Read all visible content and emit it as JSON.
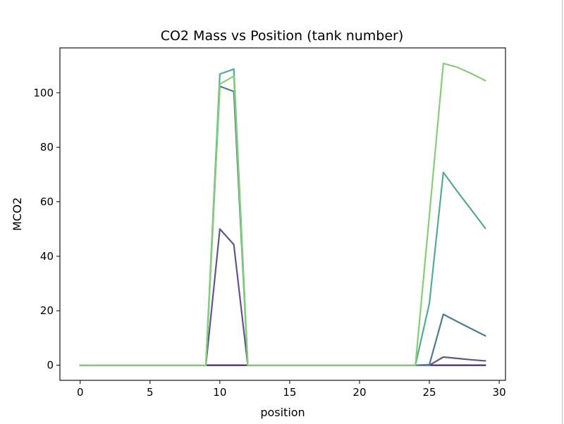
{
  "chart_data": {
    "type": "line",
    "title": "CO2 Mass vs Position (tank number)",
    "xlabel": "position",
    "ylabel": "MCO2",
    "xlim": [
      -1.45,
      30.45
    ],
    "ylim": [
      -5.55,
      116.5
    ],
    "xticks": [
      0,
      5,
      10,
      15,
      20,
      25,
      30
    ],
    "yticks": [
      0,
      20,
      40,
      60,
      80,
      100
    ],
    "grid": false,
    "legend": "none",
    "x": [
      0,
      1,
      2,
      3,
      4,
      5,
      6,
      7,
      8,
      9,
      10,
      11,
      12,
      13,
      14,
      15,
      16,
      17,
      18,
      19,
      20,
      21,
      22,
      23,
      24,
      25,
      26,
      27,
      28,
      29
    ],
    "series": [
      {
        "color": "#3b1f5e",
        "values": [
          0,
          0,
          0,
          0,
          0,
          0,
          0,
          0,
          0,
          0,
          0,
          0,
          0,
          0,
          0,
          0,
          0,
          0,
          0,
          0,
          0,
          0,
          0,
          0,
          0,
          0,
          0,
          0,
          0,
          0
        ]
      },
      {
        "color": "#62548a",
        "values": [
          0,
          0,
          0,
          0,
          0,
          0,
          0,
          0,
          0,
          0,
          50,
          44.3,
          0,
          0,
          0,
          0,
          0,
          0,
          0,
          0,
          0,
          0,
          0,
          0,
          0,
          0,
          3,
          2.5,
          2,
          1.6
        ]
      },
      {
        "color": "#4e7c8e",
        "values": [
          0,
          0,
          0,
          0,
          0,
          0,
          0,
          0,
          0,
          0,
          102.4,
          100.5,
          0,
          0,
          0,
          0,
          0,
          0,
          0,
          0,
          0,
          0,
          0,
          0,
          0,
          0.2,
          18.7,
          16,
          13.4,
          10.8
        ]
      },
      {
        "color": "#55aa94",
        "values": [
          0,
          0,
          0,
          0,
          0,
          0,
          0,
          0,
          0,
          0,
          106.9,
          108.7,
          0,
          0,
          0,
          0,
          0,
          0,
          0,
          0,
          0,
          0,
          0,
          0,
          0,
          22.7,
          70.8,
          63.8,
          57.1,
          50.3
        ]
      },
      {
        "color": "#86cd78",
        "values": [
          0,
          0,
          0,
          0,
          0,
          0,
          0,
          0,
          0,
          0,
          103.2,
          106.1,
          0,
          0,
          0,
          0,
          0,
          0,
          0,
          0,
          0,
          0,
          0,
          0,
          0,
          55,
          110.8,
          109.4,
          107.1,
          104.5
        ]
      }
    ]
  }
}
